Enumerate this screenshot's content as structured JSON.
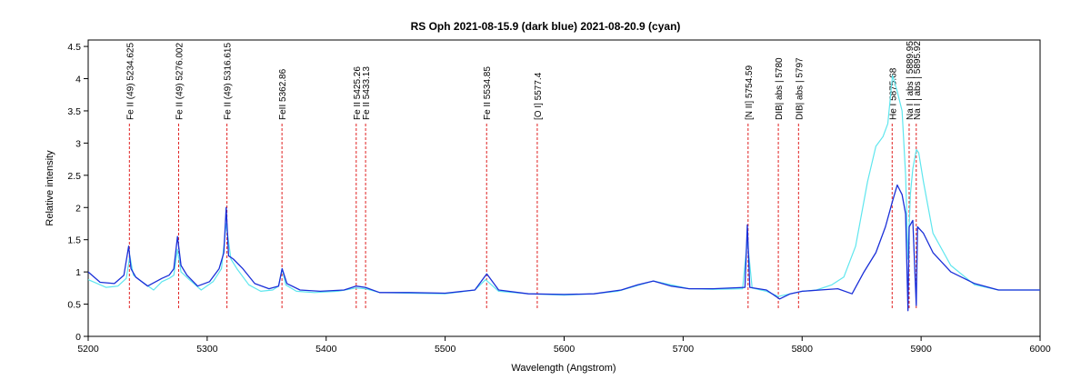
{
  "chart_data": {
    "type": "line",
    "title": "RS Oph   2021-08-15.9  (dark blue) 2021-08-20.9 (cyan)",
    "xlabel": "Wavelength (Angstrom)",
    "ylabel": "Relative intensity",
    "xlim": [
      5200,
      6000
    ],
    "ylim": [
      0,
      4.6
    ],
    "x_ticks": [
      "5200",
      "5300",
      "5400",
      "5500",
      "5600",
      "5700",
      "5800",
      "5900",
      "6000"
    ],
    "x_tick_values": [
      5200,
      5300,
      5400,
      5500,
      5600,
      5700,
      5800,
      5900,
      6000
    ],
    "y_ticks": [
      "0",
      "0.5",
      "1",
      "1.5",
      "2",
      "2.5",
      "3",
      "3.5",
      "4",
      "4.5"
    ],
    "y_tick_values": [
      0,
      0.5,
      1,
      1.5,
      2,
      2.5,
      3,
      3.5,
      4,
      4.5
    ],
    "grid": false,
    "colors": {
      "dark_blue": "#1a2fd8",
      "cyan": "#5fe6ee",
      "marker": "#e02020"
    },
    "series": [
      {
        "color": "#5fe6ee",
        "x": [
          5200,
          5215,
          5225,
          5232,
          5235,
          5238,
          5245,
          5255,
          5262,
          5268,
          5272,
          5275,
          5278,
          5285,
          5295,
          5305,
          5312,
          5316,
          5320,
          5325,
          5335,
          5345,
          5355,
          5360,
          5363,
          5366,
          5375,
          5390,
          5410,
          5425,
          5433,
          5445,
          5470,
          5500,
          5525,
          5534,
          5545,
          5570,
          5600,
          5625,
          5645,
          5660,
          5675,
          5690,
          5705,
          5725,
          5750,
          5754,
          5758,
          5770,
          5780,
          5790,
          5800,
          5812,
          5825,
          5835,
          5845,
          5855,
          5862,
          5868,
          5872,
          5876,
          5880,
          5884,
          5887,
          5889,
          5891,
          5893,
          5896,
          5898,
          5902,
          5910,
          5925,
          5945,
          5965,
          5985,
          6000
        ],
        "y": [
          0.88,
          0.76,
          0.78,
          0.9,
          1.25,
          0.95,
          0.85,
          0.72,
          0.85,
          0.9,
          0.95,
          1.35,
          1.0,
          0.88,
          0.72,
          0.85,
          1.05,
          1.75,
          1.2,
          1.05,
          0.8,
          0.7,
          0.72,
          0.78,
          1.05,
          0.8,
          0.7,
          0.68,
          0.7,
          0.75,
          0.74,
          0.68,
          0.67,
          0.66,
          0.72,
          0.88,
          0.7,
          0.66,
          0.64,
          0.66,
          0.7,
          0.78,
          0.86,
          0.8,
          0.74,
          0.73,
          0.74,
          1.5,
          0.75,
          0.7,
          0.62,
          0.66,
          0.7,
          0.72,
          0.8,
          0.92,
          1.4,
          2.4,
          2.95,
          3.1,
          3.3,
          4.05,
          3.8,
          3.5,
          2.5,
          1.2,
          2.2,
          2.6,
          2.9,
          2.85,
          2.4,
          1.6,
          1.1,
          0.8,
          0.72,
          0.72,
          0.72
        ]
      },
      {
        "color": "#1a2fd8",
        "x": [
          5200,
          5210,
          5222,
          5230,
          5234,
          5236,
          5240,
          5250,
          5262,
          5268,
          5272,
          5275,
          5278,
          5283,
          5292,
          5302,
          5310,
          5314,
          5316,
          5318,
          5322,
          5330,
          5340,
          5352,
          5360,
          5363,
          5367,
          5378,
          5395,
          5415,
          5425,
          5433,
          5445,
          5470,
          5500,
          5525,
          5535,
          5545,
          5570,
          5600,
          5625,
          5648,
          5662,
          5675,
          5690,
          5705,
          5725,
          5752,
          5754,
          5756,
          5770,
          5778,
          5781,
          5790,
          5800,
          5815,
          5830,
          5842,
          5852,
          5862,
          5870,
          5876,
          5880,
          5884,
          5887,
          5888.95,
          5890,
          5893,
          5895.92,
          5897,
          5902,
          5910,
          5925,
          5945,
          5965,
          5985,
          6000
        ],
        "y": [
          1.0,
          0.84,
          0.82,
          0.95,
          1.4,
          1.05,
          0.92,
          0.78,
          0.9,
          0.95,
          1.05,
          1.55,
          1.1,
          0.95,
          0.78,
          0.85,
          1.05,
          1.3,
          2.0,
          1.25,
          1.2,
          1.05,
          0.82,
          0.74,
          0.78,
          1.05,
          0.82,
          0.72,
          0.7,
          0.72,
          0.78,
          0.76,
          0.68,
          0.68,
          0.67,
          0.72,
          0.97,
          0.72,
          0.66,
          0.65,
          0.66,
          0.72,
          0.8,
          0.86,
          0.78,
          0.74,
          0.74,
          0.76,
          1.73,
          0.76,
          0.72,
          0.62,
          0.58,
          0.66,
          0.7,
          0.72,
          0.74,
          0.66,
          1.0,
          1.3,
          1.7,
          2.1,
          2.35,
          2.2,
          1.9,
          0.4,
          1.7,
          1.8,
          0.48,
          1.7,
          1.6,
          1.3,
          1.0,
          0.82,
          0.72,
          0.72,
          0.72
        ]
      }
    ],
    "annotations": [
      {
        "x": 5234.625,
        "label": "Fe II (49) 5234.625"
      },
      {
        "x": 5276.002,
        "label": "Fe II (49) 5276.002"
      },
      {
        "x": 5316.615,
        "label": "Fe II (49) 5316.615"
      },
      {
        "x": 5362.86,
        "label": "FeII 5362.86"
      },
      {
        "x": 5425.26,
        "label": "Fe II 5425.26"
      },
      {
        "x": 5433.13,
        "label": "Fe II 5433.13"
      },
      {
        "x": 5534.85,
        "label": "Fe II 5534.85"
      },
      {
        "x": 5577.4,
        "label": "[O I] 5577.4"
      },
      {
        "x": 5754.59,
        "label": "[N II] 5754.59"
      },
      {
        "x": 5780,
        "label": "DIB| abs | 5780"
      },
      {
        "x": 5797,
        "label": "DIB| abs | 5797"
      },
      {
        "x": 5875.68,
        "label": "He I 5875.68"
      },
      {
        "x": 5889.95,
        "label": "Na I | abs | 5889.95"
      },
      {
        "x": 5895.92,
        "label": "Na I | abs | 5895.92"
      }
    ]
  }
}
